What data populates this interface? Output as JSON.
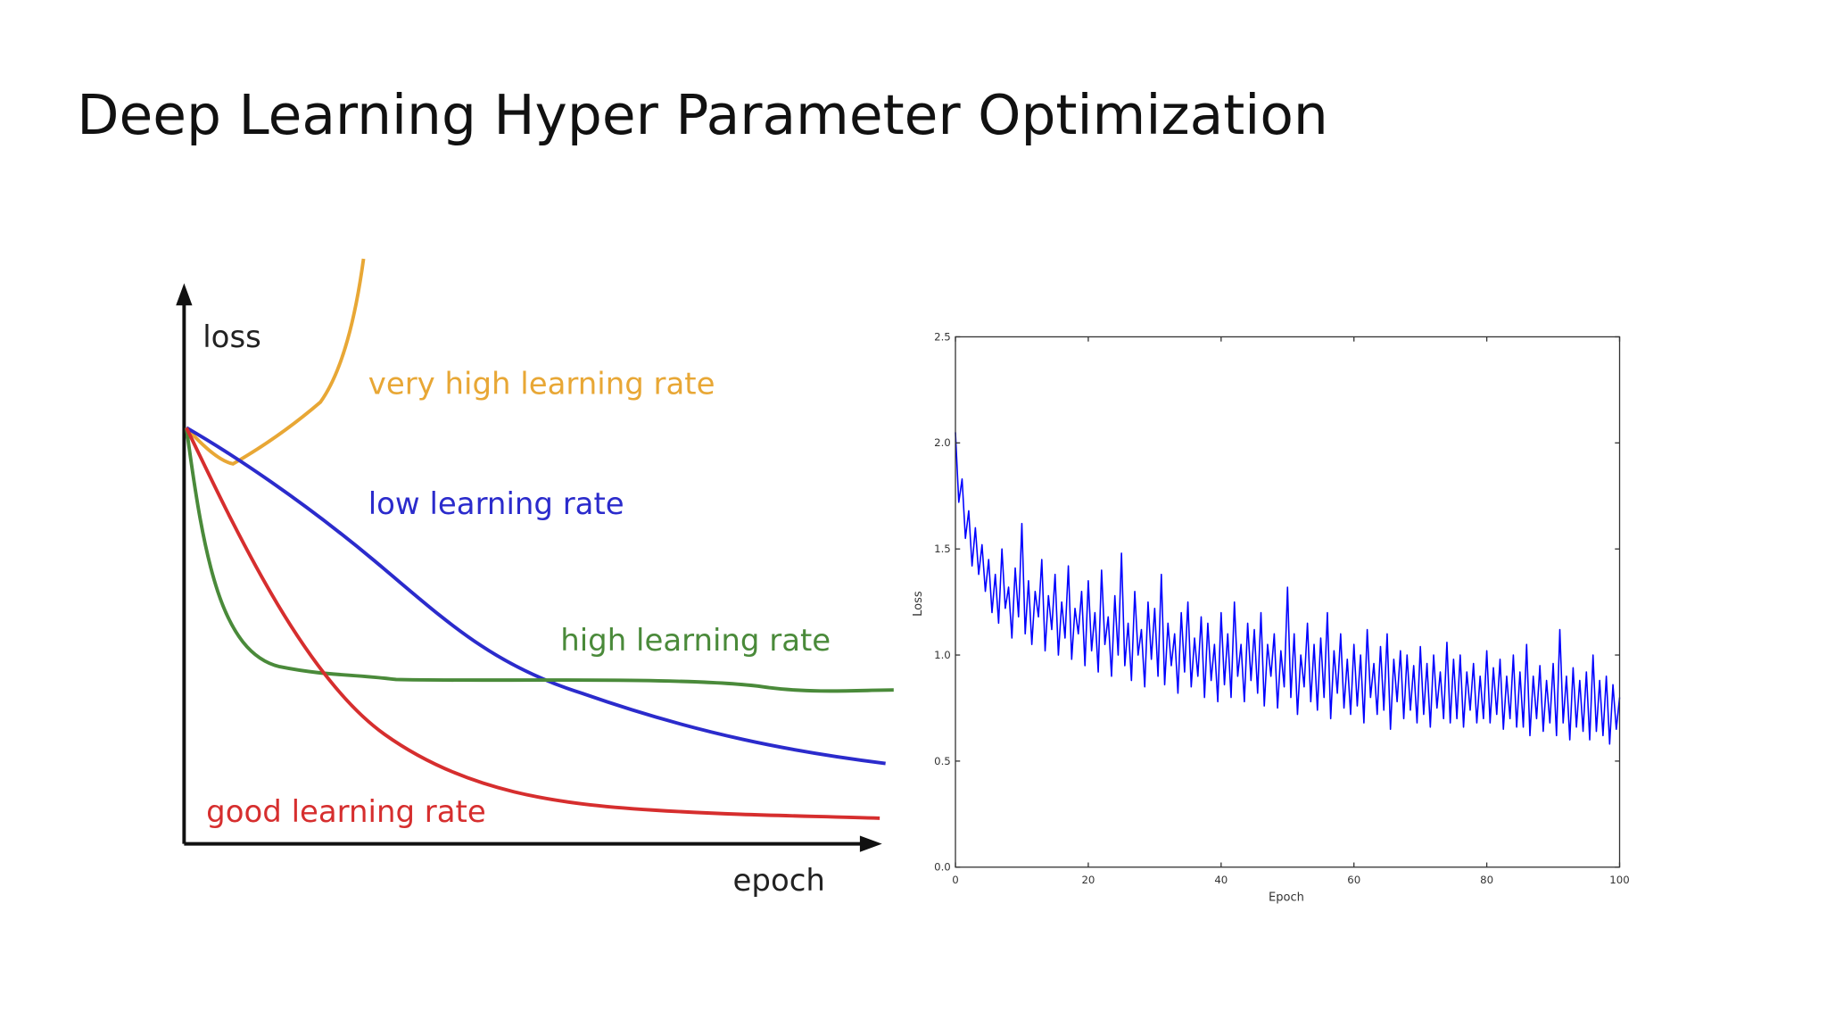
{
  "title": "Deep Learning Hyper Parameter Optimization",
  "diagram": {
    "y_axis_label": "loss",
    "x_axis_label": "epoch",
    "curves": [
      {
        "label": "very high learning rate"
      },
      {
        "label": "low learning rate"
      },
      {
        "label": "high learning rate"
      },
      {
        "label": "good learning rate"
      }
    ]
  },
  "chart_data": {
    "type": "line",
    "xlabel": "Epoch",
    "ylabel": "Loss",
    "color": "#0000ff",
    "xlim": [
      0,
      100
    ],
    "xticks": [
      0,
      20,
      40,
      60,
      80,
      100
    ],
    "ylim": [
      0,
      2.5
    ],
    "yticks": [
      {
        "value": 0,
        "label": "0.0"
      },
      0.5,
      {
        "value": 1,
        "label": "1.0"
      },
      1.5,
      {
        "value": 2,
        "label": "2.0"
      },
      2.5
    ],
    "x": [
      0,
      0.5,
      1,
      1.5,
      2,
      2.5,
      3,
      3.5,
      4,
      4.5,
      5,
      5.5,
      6,
      6.5,
      7,
      7.5,
      8,
      8.5,
      9,
      9.5,
      10,
      10.5,
      11,
      11.5,
      12,
      12.5,
      13,
      13.5,
      14,
      14.5,
      15,
      15.5,
      16,
      16.5,
      17,
      17.5,
      18,
      18.5,
      19,
      19.5,
      20,
      20.5,
      21,
      21.5,
      22,
      22.5,
      23,
      23.5,
      24,
      24.5,
      25,
      25.5,
      26,
      26.5,
      27,
      27.5,
      28,
      28.5,
      29,
      29.5,
      30,
      30.5,
      31,
      31.5,
      32,
      32.5,
      33,
      33.5,
      34,
      34.5,
      35,
      35.5,
      36,
      36.5,
      37,
      37.5,
      38,
      38.5,
      39,
      39.5,
      40,
      40.5,
      41,
      41.5,
      42,
      42.5,
      43,
      43.5,
      44,
      44.5,
      45,
      45.5,
      46,
      46.5,
      47,
      47.5,
      48,
      48.5,
      49,
      49.5,
      50,
      50.5,
      51,
      51.5,
      52,
      52.5,
      53,
      53.5,
      54,
      54.5,
      55,
      55.5,
      56,
      56.5,
      57,
      57.5,
      58,
      58.5,
      59,
      59.5,
      60,
      60.5,
      61,
      61.5,
      62,
      62.5,
      63,
      63.5,
      64,
      64.5,
      65,
      65.5,
      66,
      66.5,
      67,
      67.5,
      68,
      68.5,
      69,
      69.5,
      70,
      70.5,
      71,
      71.5,
      72,
      72.5,
      73,
      73.5,
      74,
      74.5,
      75,
      75.5,
      76,
      76.5,
      77,
      77.5,
      78,
      78.5,
      79,
      79.5,
      80,
      80.5,
      81,
      81.5,
      82,
      82.5,
      83,
      83.5,
      84,
      84.5,
      85,
      85.5,
      86,
      86.5,
      87,
      87.5,
      88,
      88.5,
      89,
      89.5,
      90,
      90.5,
      91,
      91.5,
      92,
      92.5,
      93,
      93.5,
      94,
      94.5,
      95,
      95.5,
      96,
      96.5,
      97,
      97.5,
      98,
      98.5,
      99,
      99.5,
      100
    ],
    "values": [
      2.05,
      1.72,
      1.83,
      1.55,
      1.68,
      1.42,
      1.6,
      1.38,
      1.52,
      1.3,
      1.45,
      1.2,
      1.38,
      1.15,
      1.5,
      1.22,
      1.32,
      1.08,
      1.41,
      1.18,
      1.62,
      1.1,
      1.35,
      1.05,
      1.3,
      1.18,
      1.45,
      1.02,
      1.28,
      1.12,
      1.38,
      1.0,
      1.25,
      1.08,
      1.42,
      0.98,
      1.22,
      1.1,
      1.3,
      0.95,
      1.35,
      1.02,
      1.2,
      0.92,
      1.4,
      1.05,
      1.18,
      0.9,
      1.28,
      1.0,
      1.48,
      0.95,
      1.15,
      0.88,
      1.3,
      1.0,
      1.12,
      0.85,
      1.25,
      0.98,
      1.22,
      0.9,
      1.38,
      0.86,
      1.15,
      0.95,
      1.1,
      0.82,
      1.2,
      0.92,
      1.25,
      0.85,
      1.08,
      0.9,
      1.18,
      0.8,
      1.15,
      0.88,
      1.05,
      0.78,
      1.2,
      0.86,
      1.1,
      0.8,
      1.25,
      0.9,
      1.05,
      0.78,
      1.15,
      0.88,
      1.12,
      0.82,
      1.2,
      0.76,
      1.05,
      0.9,
      1.1,
      0.75,
      1.02,
      0.85,
      1.32,
      0.8,
      1.1,
      0.72,
      1.0,
      0.85,
      1.15,
      0.78,
      1.05,
      0.74,
      1.08,
      0.8,
      1.2,
      0.7,
      1.02,
      0.82,
      1.1,
      0.75,
      0.98,
      0.72,
      1.05,
      0.76,
      1.0,
      0.68,
      1.12,
      0.8,
      0.96,
      0.72,
      1.04,
      0.74,
      1.1,
      0.65,
      0.98,
      0.78,
      1.02,
      0.7,
      1.0,
      0.74,
      0.95,
      0.68,
      1.04,
      0.72,
      0.96,
      0.66,
      1.0,
      0.75,
      0.92,
      0.7,
      1.06,
      0.68,
      0.98,
      0.7,
      1.0,
      0.66,
      0.92,
      0.74,
      0.96,
      0.68,
      0.9,
      0.7,
      1.02,
      0.68,
      0.94,
      0.72,
      0.98,
      0.65,
      0.9,
      0.7,
      1.0,
      0.66,
      0.92,
      0.66,
      1.05,
      0.62,
      0.9,
      0.7,
      0.95,
      0.64,
      0.88,
      0.68,
      0.96,
      0.62,
      1.12,
      0.68,
      0.9,
      0.6,
      0.94,
      0.66,
      0.88,
      0.64,
      0.92,
      0.6,
      1.0,
      0.64,
      0.88,
      0.62,
      0.9,
      0.58,
      0.86,
      0.65,
      0.8
    ]
  }
}
